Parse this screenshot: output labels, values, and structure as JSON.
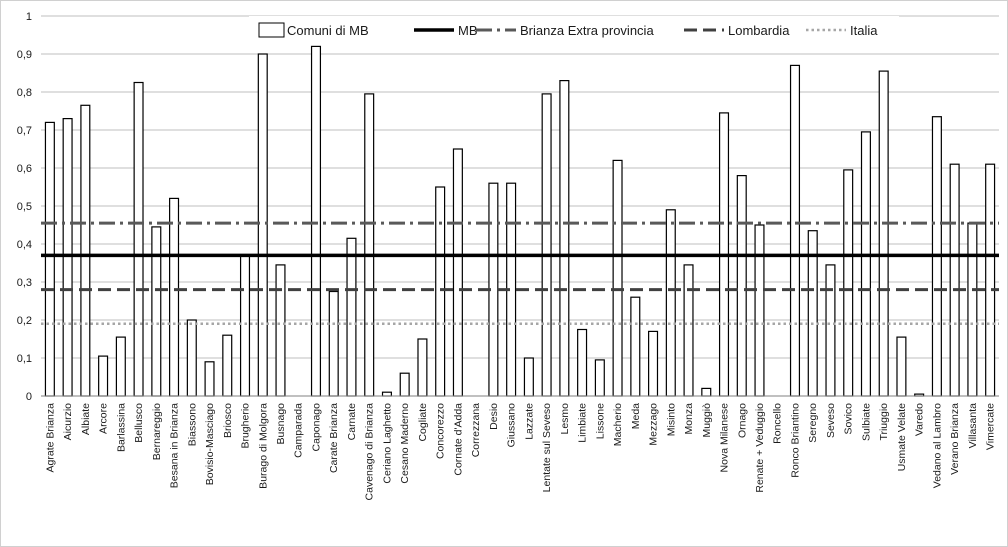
{
  "chart_data": {
    "type": "bar",
    "ylim": [
      0,
      1
    ],
    "yticks": [
      "0",
      "0,1",
      "0,2",
      "0,3",
      "0,4",
      "0,5",
      "0,6",
      "0,7",
      "0,8",
      "0,9",
      "1"
    ],
    "grid": "horizontal",
    "legend_position": "top-right",
    "categories": [
      "Agrate Brianza",
      "Aicurzio",
      "Albiate",
      "Arcore",
      "Barlassina",
      "Bellusco",
      "Bernareggio",
      "Besana in Brianza",
      "Biassono",
      "Bovisio-Masciago",
      "Briosco",
      "Brugherio",
      "Burago di Molgora",
      "Busnago",
      "Camparada",
      "Caponago",
      "Carate Brianza",
      "Carnate",
      "Cavenago di Brianza",
      "Ceriano Laghetto",
      "Cesano Maderno",
      "Cogliate",
      "Concorezzo",
      "Cornate d'Adda",
      "Correzzana",
      "Desio",
      "Giussano",
      "Lazzate",
      "Lentate sul Seveso",
      "Lesmo",
      "Limbiate",
      "Lissone",
      "Macherio",
      "Meda",
      "Mezzago",
      "Misinto",
      "Monza",
      "Muggiò",
      "Nova Milanese",
      "Ornago",
      "Renate + Veduggio",
      "Roncello",
      "Ronco Briantino",
      "Seregno",
      "Seveso",
      "Sovico",
      "Sulbiate",
      "Triuggio",
      "Usmate Velate",
      "Varedo",
      "Vedano al Lambro",
      "Verano Brianza",
      "Villasanta",
      "Vimercate"
    ],
    "series": [
      {
        "name": "Comuni di MB",
        "style": "bar-outline",
        "color": "#000000",
        "values": [
          0.72,
          0.73,
          0.765,
          0.105,
          0.155,
          0.825,
          0.445,
          0.52,
          0.2,
          0.09,
          0.16,
          0.37,
          0.9,
          0.345,
          0,
          0.92,
          0.275,
          0.415,
          0.795,
          0.01,
          0.06,
          0.15,
          0.55,
          0.65,
          0,
          0.56,
          0.56,
          0.1,
          0.795,
          0.83,
          0.175,
          0.095,
          0.62,
          0.26,
          0.17,
          0.49,
          0.345,
          0.02,
          0.745,
          0.58,
          0.45,
          0,
          0.87,
          0.435,
          0.345,
          0.595,
          0.695,
          0.855,
          0.155,
          0.005,
          0.735,
          0.61,
          0.455,
          0.61
        ]
      },
      {
        "name": "MB",
        "style": "solid",
        "color": "#000000",
        "value": 0.37
      },
      {
        "name": "Brianza Extra provincia",
        "style": "dash-dot",
        "color": "#595959",
        "value": 0.455
      },
      {
        "name": "Lombardia",
        "style": "dashed",
        "color": "#404040",
        "value": 0.28
      },
      {
        "name": "Italia",
        "style": "dotted",
        "color": "#a6a6a6",
        "value": 0.19
      }
    ]
  }
}
